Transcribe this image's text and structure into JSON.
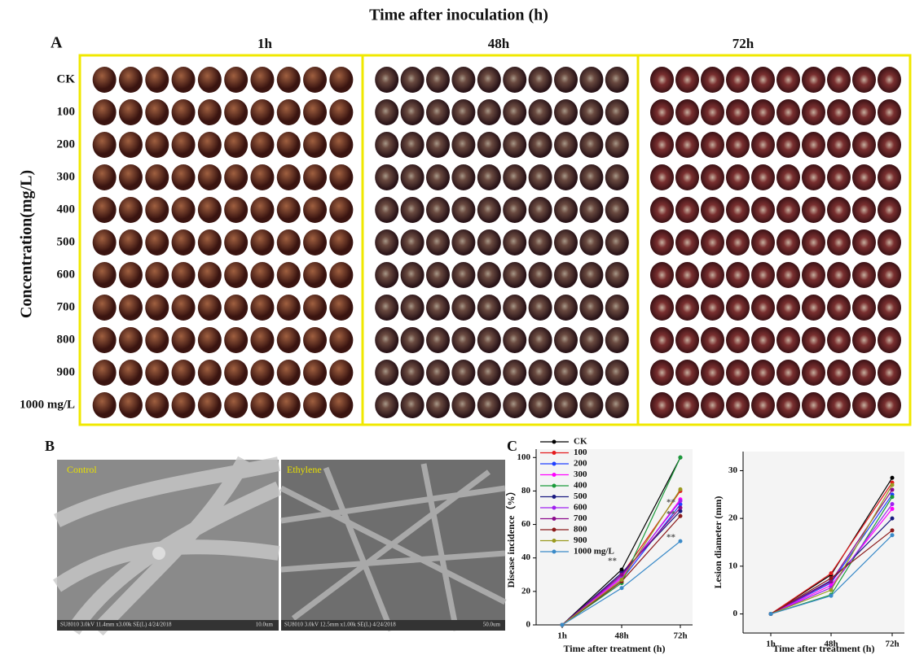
{
  "panel_a": {
    "title": "Time after inoculation (h)",
    "label": "A",
    "columns": [
      "1h",
      "48h",
      "72h"
    ],
    "y_label": "Concentration(mg/L)",
    "rows": [
      "CK",
      "100",
      "200",
      "300",
      "400",
      "500",
      "600",
      "700",
      "800",
      "900",
      "1000 mg/L"
    ]
  },
  "panel_b": {
    "label": "B",
    "images": [
      {
        "label": "Control",
        "caption": "SU8010 3.0kV 11.4mm x3.00k SE(L) 4/24/2018",
        "scale": "10.0um"
      },
      {
        "label": "Ethylene",
        "caption": "SU8010 3.0kV 12.5mm x1.00k SE(L) 4/24/2018",
        "scale": "50.0um"
      }
    ]
  },
  "panel_c": {
    "label": "C"
  },
  "chart_data": [
    {
      "type": "line",
      "y_label": "Disease incidence（%）",
      "x_label": "Time after treatment (h)",
      "categories": [
        "1h",
        "48h",
        "72h"
      ],
      "ylim": [
        0,
        105
      ],
      "yticks": [
        0,
        20,
        40,
        60,
        80,
        100
      ],
      "legend": "upper left",
      "series": [
        {
          "name": "CK",
          "color": "#000000",
          "values": [
            0,
            33,
            100
          ]
        },
        {
          "name": "100",
          "color": "#e41a1c",
          "values": [
            0,
            30,
            80
          ]
        },
        {
          "name": "200",
          "color": "#1f3fff",
          "values": [
            0,
            27,
            72
          ]
        },
        {
          "name": "300",
          "color": "#ff00ff",
          "values": [
            0,
            28,
            75
          ]
        },
        {
          "name": "400",
          "color": "#1a9a3a",
          "values": [
            0,
            25,
            100
          ]
        },
        {
          "name": "500",
          "color": "#1a1a80",
          "values": [
            0,
            31,
            68
          ]
        },
        {
          "name": "600",
          "color": "#a020f0",
          "values": [
            0,
            29,
            74
          ]
        },
        {
          "name": "700",
          "color": "#8b0a8b",
          "values": [
            0,
            30,
            70
          ]
        },
        {
          "name": "800",
          "color": "#8b1a1a",
          "values": [
            0,
            26,
            65
          ]
        },
        {
          "name": "900",
          "color": "#9a9a20",
          "values": [
            0,
            27,
            81
          ]
        },
        {
          "name": "1000 mg/L",
          "color": "#3a8ac8",
          "values": [
            0,
            22,
            50
          ]
        }
      ],
      "annotations": [
        {
          "text": "**",
          "x": "48h",
          "y": 38
        },
        {
          "text": "**",
          "x": "72h",
          "y": 73
        },
        {
          "text": "**",
          "x": "72h",
          "y": 66
        },
        {
          "text": "**",
          "x": "72h",
          "y": 52
        }
      ]
    },
    {
      "type": "line",
      "y_label": "Lesion diameter (mm)",
      "x_label": "Time after treatment (h)",
      "categories": [
        "1h",
        "48h",
        "72h"
      ],
      "ylim": [
        -4,
        34
      ],
      "yticks": [
        0,
        10,
        20,
        30
      ],
      "series": [
        {
          "color": "#000000",
          "values": [
            0,
            8.2,
            28.5
          ]
        },
        {
          "color": "#e41a1c",
          "values": [
            0,
            8.5,
            27.5
          ]
        },
        {
          "color": "#1f3fff",
          "values": [
            0,
            6.5,
            25
          ]
        },
        {
          "color": "#ff00ff",
          "values": [
            0,
            6,
            22
          ]
        },
        {
          "color": "#1a9a3a",
          "values": [
            0,
            4,
            24.5
          ]
        },
        {
          "color": "#1a1a80",
          "values": [
            0,
            7,
            20
          ]
        },
        {
          "color": "#a020f0",
          "values": [
            0,
            5.5,
            23
          ]
        },
        {
          "color": "#8b0a8b",
          "values": [
            0,
            6.8,
            26
          ]
        },
        {
          "color": "#8b1a1a",
          "values": [
            0,
            7.5,
            17.5
          ]
        },
        {
          "color": "#9a9a20",
          "values": [
            0,
            5,
            27
          ]
        },
        {
          "color": "#3a8ac8",
          "values": [
            0,
            3.8,
            16.5
          ]
        }
      ]
    }
  ]
}
